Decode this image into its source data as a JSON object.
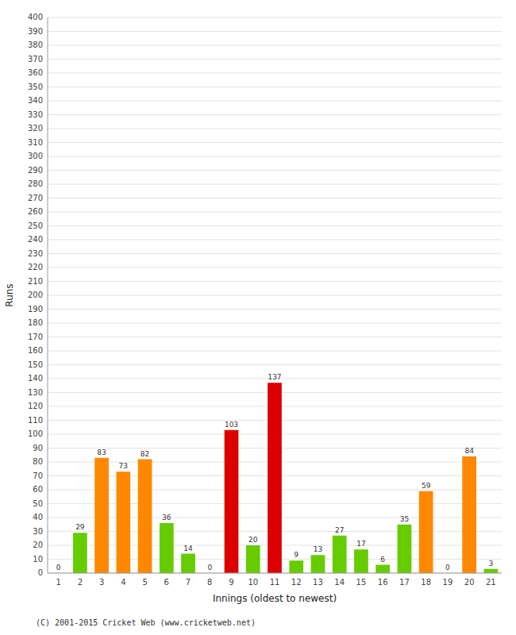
{
  "chart_data": {
    "type": "bar",
    "categories": [
      "1",
      "2",
      "3",
      "4",
      "5",
      "6",
      "7",
      "8",
      "9",
      "10",
      "11",
      "12",
      "13",
      "14",
      "15",
      "16",
      "17",
      "18",
      "19",
      "20",
      "21"
    ],
    "values": [
      0,
      29,
      83,
      73,
      82,
      36,
      14,
      0,
      103,
      20,
      137,
      9,
      13,
      27,
      17,
      6,
      35,
      59,
      0,
      84,
      3
    ],
    "colors": [
      "#66cc00",
      "#66cc00",
      "#ff8800",
      "#ff8800",
      "#ff8800",
      "#66cc00",
      "#66cc00",
      "#66cc00",
      "#dd0000",
      "#66cc00",
      "#dd0000",
      "#66cc00",
      "#66cc00",
      "#66cc00",
      "#66cc00",
      "#66cc00",
      "#66cc00",
      "#ff8800",
      "#66cc00",
      "#ff8800",
      "#66cc00"
    ],
    "x_label": "Innings (oldest to newest)",
    "y_label": "Runs",
    "ylim": [
      0,
      400
    ],
    "yticks": [
      0,
      10,
      20,
      30,
      40,
      50,
      60,
      70,
      80,
      90,
      100,
      110,
      120,
      130,
      140,
      150,
      160,
      170,
      180,
      190,
      200,
      210,
      220,
      230,
      240,
      250,
      260,
      270,
      280,
      290,
      300,
      310,
      320,
      330,
      340,
      350,
      360,
      370,
      380,
      390,
      400
    ],
    "grid": true,
    "data_labels": true,
    "annotations": [
      "(C) 2001-2015 Cricket Web (www.cricketweb.net)"
    ]
  }
}
